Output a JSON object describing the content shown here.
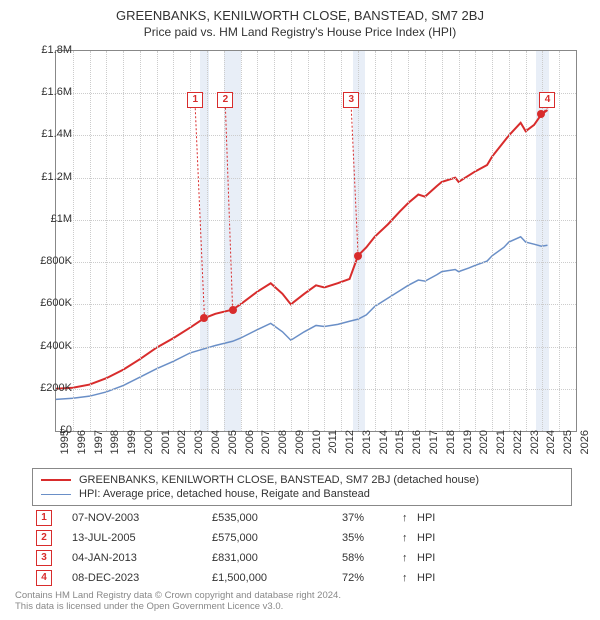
{
  "title": {
    "main": "GREENBANKS, KENILWORTH CLOSE, BANSTEAD, SM7 2BJ",
    "sub": "Price paid vs. HM Land Registry's House Price Index (HPI)"
  },
  "chart": {
    "type": "line",
    "background_color": "#ffffff",
    "border_color": "#888888",
    "grid_color": "#cccccc",
    "highlight_color": "#e8eef7",
    "xlim": [
      1995,
      2026
    ],
    "ylim": [
      0,
      1800000
    ],
    "ytick_step": 200000,
    "ytick_labels": [
      "£0",
      "£200K",
      "£400K",
      "£600K",
      "£800K",
      "£1M",
      "£1.2M",
      "£1.4M",
      "£1.6M",
      "£1.8M"
    ],
    "xticks": [
      1995,
      1996,
      1997,
      1998,
      1999,
      2000,
      2001,
      2002,
      2003,
      2004,
      2005,
      2006,
      2007,
      2008,
      2009,
      2010,
      2011,
      2012,
      2013,
      2014,
      2015,
      2016,
      2017,
      2018,
      2019,
      2020,
      2021,
      2022,
      2023,
      2024,
      2025,
      2026
    ],
    "highlight_bands": [
      {
        "start": 2003.6,
        "end": 2004.1
      },
      {
        "start": 2005.0,
        "end": 2006.0
      },
      {
        "start": 2012.7,
        "end": 2013.4
      },
      {
        "start": 2023.6,
        "end": 2024.4
      }
    ],
    "series": [
      {
        "name": "price_paid",
        "label": "GREENBANKS, KENILWORTH CLOSE, BANSTEAD, SM7 2BJ (detached house)",
        "color": "#d82c2c",
        "line_width": 2,
        "data": [
          [
            1995.0,
            200000
          ],
          [
            1996.0,
            205000
          ],
          [
            1997.0,
            220000
          ],
          [
            1998.0,
            250000
          ],
          [
            1999.0,
            290000
          ],
          [
            2000.0,
            340000
          ],
          [
            2001.0,
            395000
          ],
          [
            2002.0,
            440000
          ],
          [
            2003.0,
            490000
          ],
          [
            2003.85,
            535000
          ],
          [
            2004.5,
            555000
          ],
          [
            2005.53,
            575000
          ],
          [
            2006.0,
            600000
          ],
          [
            2007.0,
            660000
          ],
          [
            2007.8,
            700000
          ],
          [
            2008.5,
            650000
          ],
          [
            2009.0,
            600000
          ],
          [
            2009.8,
            650000
          ],
          [
            2010.5,
            690000
          ],
          [
            2011.0,
            680000
          ],
          [
            2011.8,
            700000
          ],
          [
            2012.5,
            720000
          ],
          [
            2013.01,
            831000
          ],
          [
            2013.5,
            870000
          ],
          [
            2014.0,
            920000
          ],
          [
            2014.8,
            980000
          ],
          [
            2015.5,
            1040000
          ],
          [
            2016.0,
            1080000
          ],
          [
            2016.6,
            1120000
          ],
          [
            2017.0,
            1110000
          ],
          [
            2017.7,
            1160000
          ],
          [
            2018.0,
            1180000
          ],
          [
            2018.8,
            1200000
          ],
          [
            2019.0,
            1180000
          ],
          [
            2019.6,
            1210000
          ],
          [
            2020.0,
            1230000
          ],
          [
            2020.7,
            1260000
          ],
          [
            2021.0,
            1300000
          ],
          [
            2021.7,
            1370000
          ],
          [
            2022.0,
            1400000
          ],
          [
            2022.7,
            1460000
          ],
          [
            2023.0,
            1420000
          ],
          [
            2023.5,
            1450000
          ],
          [
            2023.94,
            1500000
          ],
          [
            2024.3,
            1520000
          ]
        ]
      },
      {
        "name": "hpi",
        "label": "HPI: Average price, detached house, Reigate and Banstead",
        "color": "#6a8fc7",
        "line_width": 1.5,
        "data": [
          [
            1995.0,
            150000
          ],
          [
            1996.0,
            155000
          ],
          [
            1997.0,
            165000
          ],
          [
            1998.0,
            185000
          ],
          [
            1999.0,
            215000
          ],
          [
            2000.0,
            255000
          ],
          [
            2001.0,
            295000
          ],
          [
            2002.0,
            330000
          ],
          [
            2003.0,
            370000
          ],
          [
            2003.85,
            390000
          ],
          [
            2004.5,
            405000
          ],
          [
            2005.53,
            425000
          ],
          [
            2006.0,
            440000
          ],
          [
            2007.0,
            480000
          ],
          [
            2007.8,
            510000
          ],
          [
            2008.5,
            470000
          ],
          [
            2009.0,
            430000
          ],
          [
            2009.8,
            470000
          ],
          [
            2010.5,
            500000
          ],
          [
            2011.0,
            495000
          ],
          [
            2011.8,
            505000
          ],
          [
            2012.5,
            520000
          ],
          [
            2013.01,
            530000
          ],
          [
            2013.5,
            550000
          ],
          [
            2014.0,
            590000
          ],
          [
            2014.8,
            630000
          ],
          [
            2015.5,
            665000
          ],
          [
            2016.0,
            690000
          ],
          [
            2016.6,
            715000
          ],
          [
            2017.0,
            710000
          ],
          [
            2017.7,
            740000
          ],
          [
            2018.0,
            755000
          ],
          [
            2018.8,
            765000
          ],
          [
            2019.0,
            755000
          ],
          [
            2019.6,
            772000
          ],
          [
            2020.0,
            785000
          ],
          [
            2020.7,
            805000
          ],
          [
            2021.0,
            830000
          ],
          [
            2021.7,
            870000
          ],
          [
            2022.0,
            895000
          ],
          [
            2022.7,
            920000
          ],
          [
            2023.0,
            895000
          ],
          [
            2023.5,
            885000
          ],
          [
            2023.94,
            875000
          ],
          [
            2024.3,
            880000
          ]
        ]
      }
    ],
    "markers": [
      {
        "n": "1",
        "x": 2003.85,
        "y": 535000,
        "box_y": 1570000,
        "box_x": 2003.3
      },
      {
        "n": "2",
        "x": 2005.53,
        "y": 575000,
        "box_y": 1570000,
        "box_x": 2005.1
      },
      {
        "n": "3",
        "x": 2013.01,
        "y": 831000,
        "box_y": 1570000,
        "box_x": 2012.6
      },
      {
        "n": "4",
        "x": 2023.94,
        "y": 1500000,
        "box_y": 1570000,
        "box_x": 2024.3
      }
    ]
  },
  "legend": {
    "items": [
      {
        "color": "#d82c2c",
        "width": 2,
        "label": "GREENBANKS, KENILWORTH CLOSE, BANSTEAD, SM7 2BJ (detached house)"
      },
      {
        "color": "#6a8fc7",
        "width": 1.5,
        "label": "HPI: Average price, detached house, Reigate and Banstead"
      }
    ]
  },
  "sales": [
    {
      "n": "1",
      "date": "07-NOV-2003",
      "price": "£535,000",
      "pct": "37%",
      "arrow": "↑",
      "hpi": "HPI"
    },
    {
      "n": "2",
      "date": "13-JUL-2005",
      "price": "£575,000",
      "pct": "35%",
      "arrow": "↑",
      "hpi": "HPI"
    },
    {
      "n": "3",
      "date": "04-JAN-2013",
      "price": "£831,000",
      "pct": "58%",
      "arrow": "↑",
      "hpi": "HPI"
    },
    {
      "n": "4",
      "date": "08-DEC-2023",
      "price": "£1,500,000",
      "pct": "72%",
      "arrow": "↑",
      "hpi": "HPI"
    }
  ],
  "footer": {
    "line1": "Contains HM Land Registry data © Crown copyright and database right 2024.",
    "line2": "This data is licensed under the Open Government Licence v3.0."
  },
  "colors": {
    "marker_border": "#d82c2c",
    "text": "#333333",
    "footer_text": "#888888"
  }
}
